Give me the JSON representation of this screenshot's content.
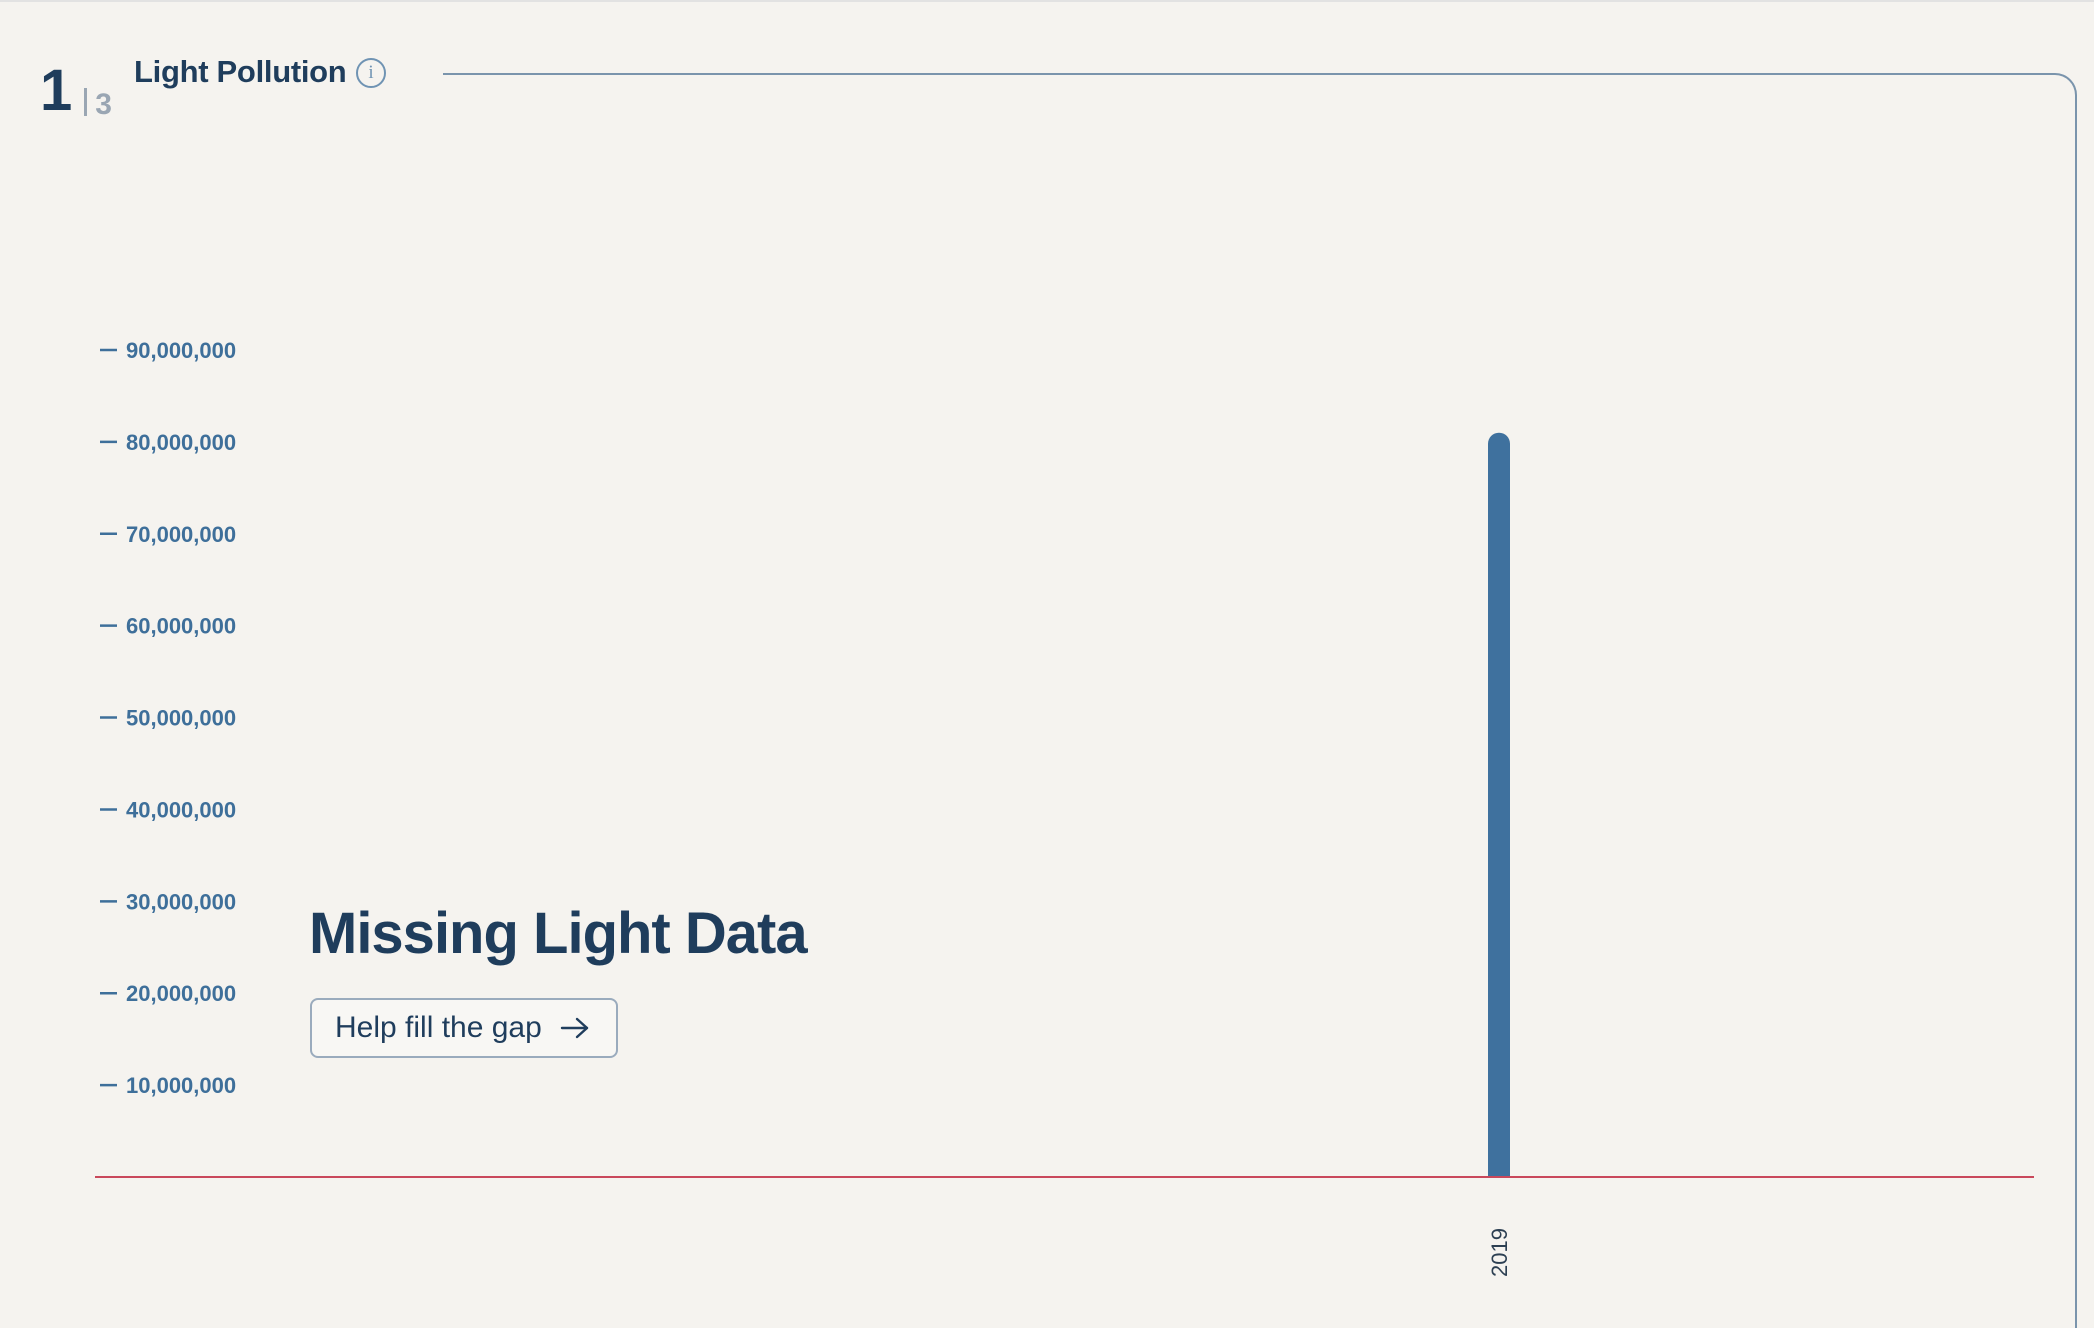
{
  "header": {
    "page_current": "1",
    "page_total": "3",
    "title": "Light Pollution",
    "info_icon": "info-icon"
  },
  "overlay": {
    "title": "Missing Light Data",
    "button_label": "Help fill the gap",
    "button_icon": "arrow-right-icon"
  },
  "colors": {
    "bar": "#3f719e",
    "axis_baseline": "#c9485b",
    "tick_label": "#3e6f9a",
    "title": "#1f3d5c"
  },
  "chart_data": {
    "type": "bar",
    "title": "Light Pollution",
    "xlabel": "",
    "ylabel": "",
    "categories": [
      "2019"
    ],
    "values": [
      81000000
    ],
    "ylim": [
      0,
      90000000
    ],
    "yticks": [
      10000000,
      20000000,
      30000000,
      40000000,
      50000000,
      60000000,
      70000000,
      80000000,
      90000000
    ],
    "ytick_labels": [
      "10,000,000",
      "20,000,000",
      "30,000,000",
      "40,000,000",
      "50,000,000",
      "60,000,000",
      "70,000,000",
      "80,000,000",
      "90,000,000"
    ],
    "grid": false,
    "legend": "none"
  }
}
